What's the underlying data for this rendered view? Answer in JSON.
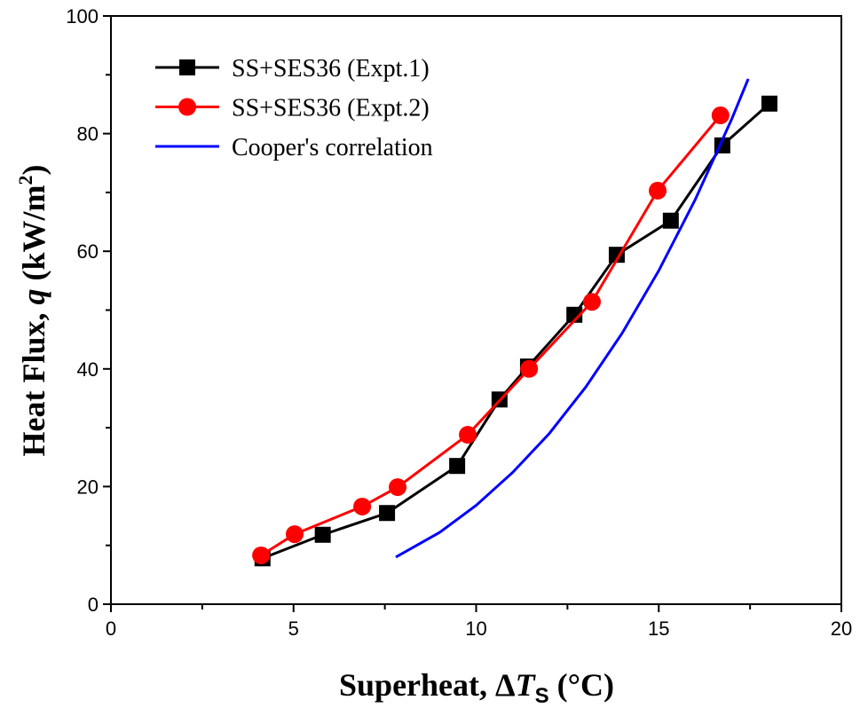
{
  "chart_data": {
    "type": "line",
    "xlabel": [
      "Superheat, Δ",
      "T",
      "S",
      " (°C)"
    ],
    "ylabel": [
      "Heat Flux, ",
      "q",
      " (kW/m",
      "2",
      ")"
    ],
    "xlim": [
      0,
      20
    ],
    "xticks": [
      0,
      5,
      10,
      15,
      20
    ],
    "xminor_ticks": [
      2.5,
      7.5,
      12.5,
      17.5
    ],
    "ylim": [
      0,
      100
    ],
    "yticks": [
      0,
      20,
      40,
      60,
      80,
      100
    ],
    "yminor_ticks": [
      10,
      30,
      50,
      70,
      90
    ],
    "legend": "upper left",
    "series": [
      {
        "name": "SS+SES36 (Expt.1)",
        "color": "#000000",
        "marker": "square",
        "x": [
          4.15,
          5.8,
          7.56,
          9.48,
          10.64,
          11.42,
          12.69,
          13.85,
          15.33,
          16.74,
          18.03
        ],
        "values": [
          7.8,
          11.8,
          15.5,
          23.5,
          34.8,
          40.4,
          49.2,
          59.4,
          65.2,
          78.0,
          85.1
        ]
      },
      {
        "name": "SS+SES36 (Expt.2)",
        "color": "#ff0000",
        "marker": "circle",
        "x": [
          4.11,
          5.03,
          6.88,
          7.85,
          9.77,
          11.45,
          13.17,
          14.97,
          16.69
        ],
        "values": [
          8.3,
          11.9,
          16.6,
          19.9,
          28.8,
          40.0,
          51.4,
          70.3,
          83.1
        ]
      },
      {
        "name": "Cooper's correlation",
        "color": "#0000ff",
        "marker": "none",
        "x": [
          7.8,
          9,
          10,
          11,
          12,
          13,
          14,
          15,
          16,
          17,
          17.45
        ],
        "values": [
          8.0,
          12.2,
          16.8,
          22.4,
          29.0,
          36.9,
          46.1,
          56.7,
          68.8,
          82.5,
          89.3
        ]
      }
    ]
  }
}
